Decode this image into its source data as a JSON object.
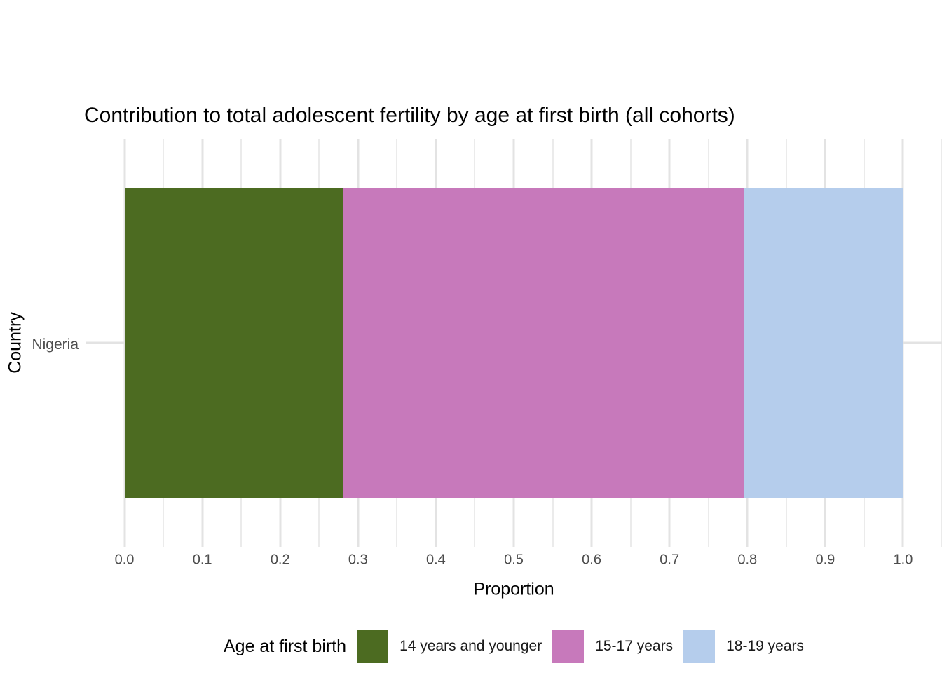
{
  "chart_data": {
    "type": "bar",
    "orientation": "horizontal",
    "stacked": true,
    "title": "Contribution to total adolescent fertility by age at first birth (all cohorts)",
    "xlabel": "Proportion",
    "ylabel": "Country",
    "categories": [
      "Nigeria"
    ],
    "series": [
      {
        "name": "14 years and younger",
        "values": [
          0.28
        ],
        "color": "#4c6b21"
      },
      {
        "name": "15-17 years",
        "values": [
          0.515
        ],
        "color": "#c779bb"
      },
      {
        "name": "18-19 years",
        "values": [
          0.205
        ],
        "color": "#b5cdec"
      }
    ],
    "xlim": [
      0,
      1
    ],
    "axis_expansion": 0.05,
    "x_ticks": [
      {
        "value": 0.0,
        "label": "0.0"
      },
      {
        "value": 0.1,
        "label": "0.1"
      },
      {
        "value": 0.2,
        "label": "0.2"
      },
      {
        "value": 0.3,
        "label": "0.3"
      },
      {
        "value": 0.4,
        "label": "0.4"
      },
      {
        "value": 0.5,
        "label": "0.5"
      },
      {
        "value": 0.6,
        "label": "0.6"
      },
      {
        "value": 0.7,
        "label": "0.7"
      },
      {
        "value": 0.8,
        "label": "0.8"
      },
      {
        "value": 0.9,
        "label": "0.9"
      },
      {
        "value": 1.0,
        "label": "1.0"
      }
    ],
    "legend_title": "Age at first birth",
    "legend_position": "bottom",
    "grid": true
  },
  "styles": {
    "background": "#ffffff",
    "grid_major_color": "#e3e3e3",
    "grid_minor_color": "#ebebeb",
    "tick_label_color": "#4d4d4d",
    "text_color": "#000000"
  }
}
